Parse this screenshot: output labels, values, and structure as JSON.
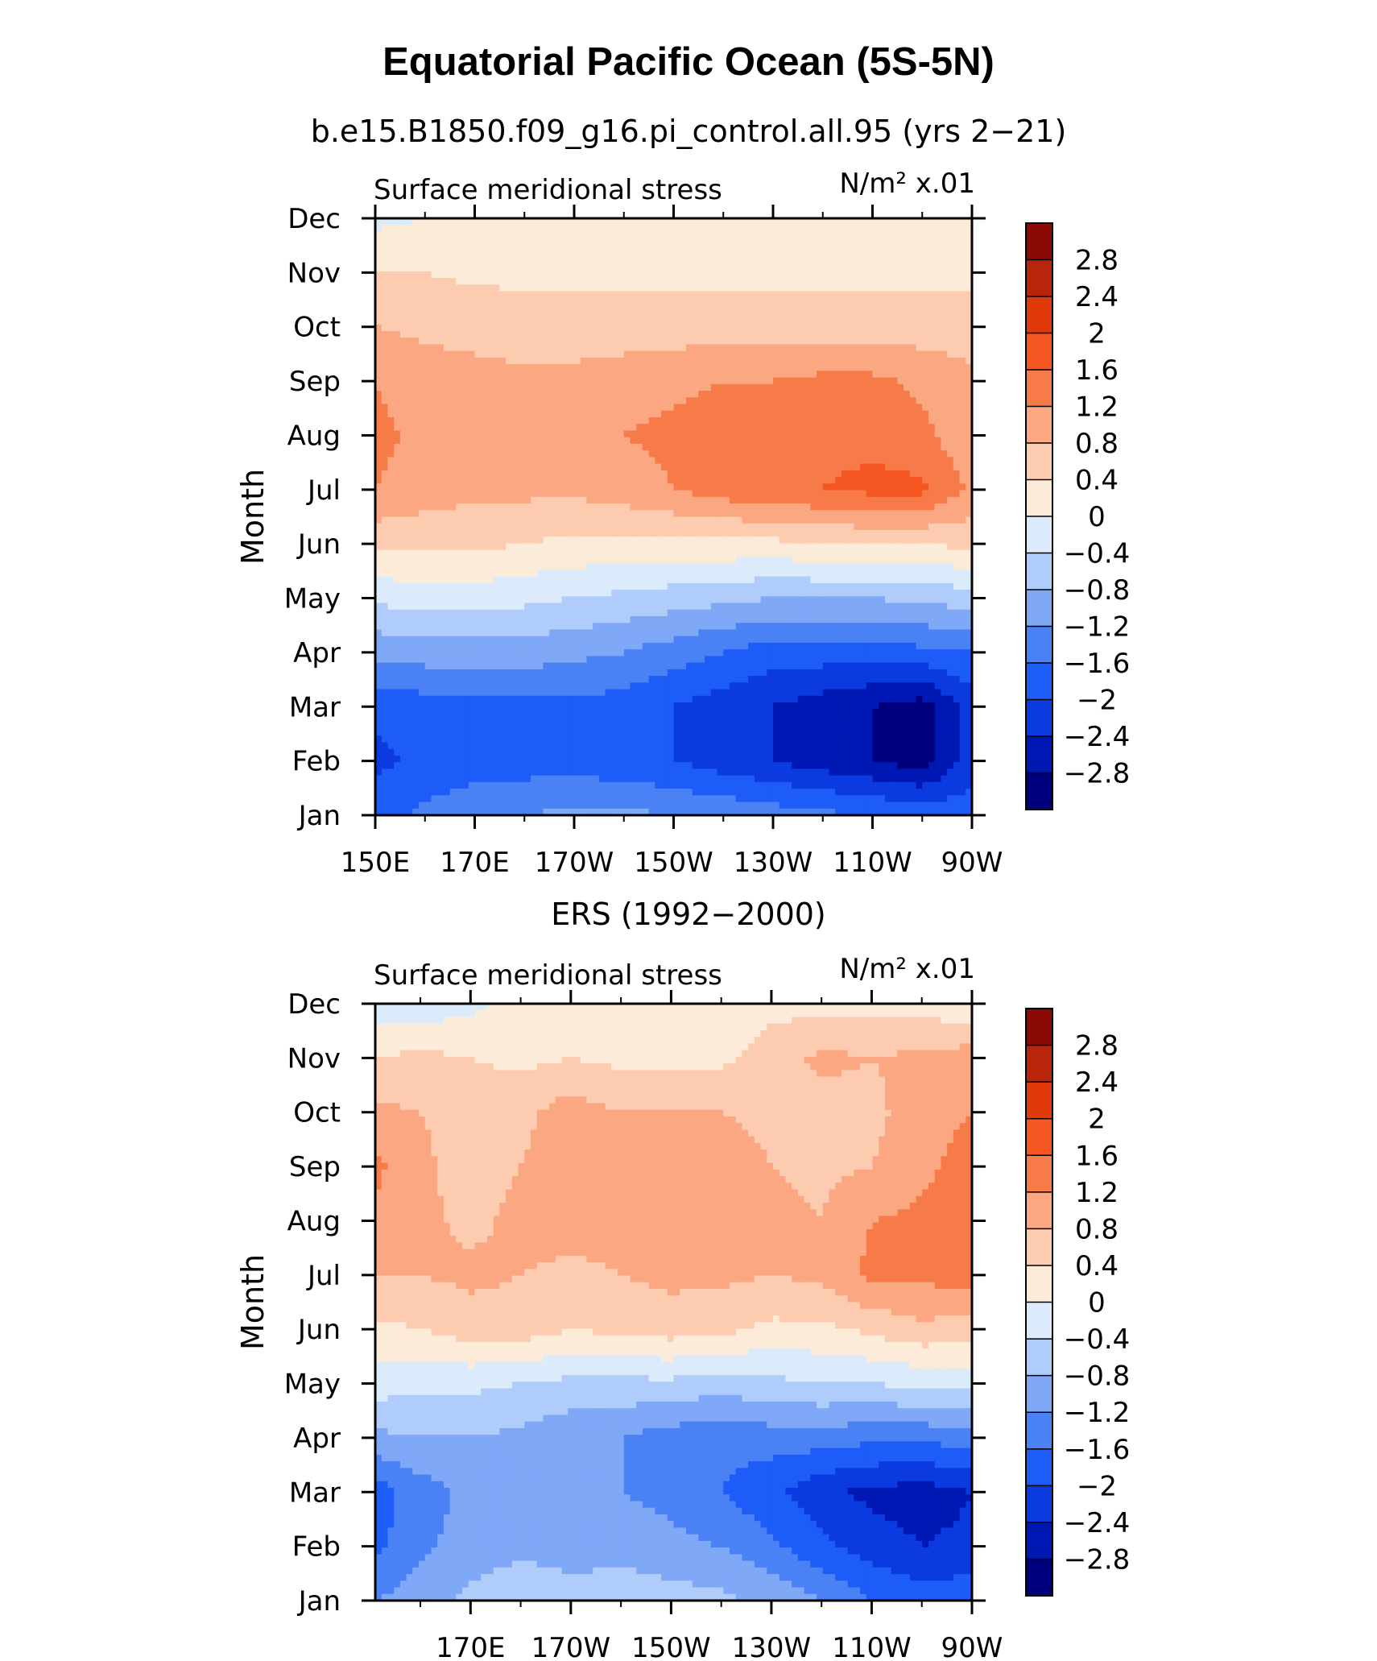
{
  "figure": {
    "title": "Equatorial Pacific Ocean (5S-5N)",
    "levels": [
      -2.8,
      -2.4,
      -2,
      -1.6,
      -1.2,
      -0.8,
      -0.4,
      0,
      0.4,
      0.8,
      1.2,
      1.6,
      2,
      2.4,
      2.8
    ],
    "colors": [
      "#00007f",
      "#0018b3",
      "#0a3ae0",
      "#1d5cf7",
      "#4a82f5",
      "#7fa8f7",
      "#b0ccfa",
      "#dcebfc",
      "#fdebd9",
      "#fccbb0",
      "#fba882",
      "#f77b48",
      "#f55622",
      "#e0390c",
      "#b8250a",
      "#8a0a05"
    ]
  },
  "chart_data": [
    {
      "type": "heatmap",
      "title": "b.e15.B1850.f09_g16.pi_control.all.95 (yrs 2−21)",
      "left_label": "Surface meridional stress",
      "right_label": "N/m² x.01",
      "ylabel": "Month",
      "xlabel": "",
      "x_ticks": [
        "150E",
        "170E",
        "170W",
        "150W",
        "130W",
        "110W",
        "90W"
      ],
      "y_ticks": [
        "Jan",
        "Feb",
        "Mar",
        "Apr",
        "May",
        "Jun",
        "Jul",
        "Aug",
        "Sep",
        "Oct",
        "Nov",
        "Dec"
      ],
      "xlim": [
        150,
        270
      ],
      "colorbar_labels": [
        "2.8",
        "2.4",
        "2",
        "1.6",
        "1.2",
        "0.8",
        "0.4",
        "0",
        "−0.4",
        "−0.8",
        "−1.2",
        "−1.6",
        "−2",
        "−2.4",
        "−2.8"
      ],
      "x": [
        150,
        160,
        170,
        180,
        190,
        200,
        210,
        220,
        230,
        240,
        250,
        260,
        270
      ],
      "values": [
        [
          -1.8,
          -1.5,
          -1.3,
          -1.2,
          -1.1,
          -1.1,
          -1.2,
          -1.3,
          -1.4,
          -1.5,
          -1.6,
          -1.7,
          -1.8
        ],
        [
          -2.1,
          -1.9,
          -1.8,
          -1.8,
          -1.8,
          -1.9,
          -2.0,
          -2.2,
          -2.4,
          -2.6,
          -2.8,
          -3.0,
          -2.2
        ],
        [
          -1.9,
          -1.8,
          -1.7,
          -1.7,
          -1.7,
          -1.8,
          -2.0,
          -2.2,
          -2.4,
          -2.6,
          -2.8,
          -3.0,
          -2.2
        ],
        [
          -1.1,
          -1.0,
          -1.0,
          -1.0,
          -1.1,
          -1.2,
          -1.4,
          -1.6,
          -1.8,
          -1.8,
          -1.8,
          -1.7,
          -1.6
        ],
        [
          -0.3,
          -0.2,
          -0.2,
          -0.3,
          -0.4,
          -0.5,
          -0.6,
          -0.7,
          -0.8,
          -0.8,
          -0.8,
          -0.7,
          -0.6
        ],
        [
          0.5,
          0.5,
          0.5,
          0.4,
          0.3,
          0.3,
          0.3,
          0.3,
          0.3,
          0.4,
          0.4,
          0.4,
          0.5
        ],
        [
          1.2,
          1.0,
          0.9,
          0.9,
          0.9,
          1.0,
          1.2,
          1.4,
          1.5,
          1.6,
          1.7,
          1.7,
          1.1
        ],
        [
          1.3,
          1.1,
          1.0,
          1.0,
          1.1,
          1.2,
          1.3,
          1.4,
          1.5,
          1.5,
          1.5,
          1.3,
          0.9
        ],
        [
          1.2,
          1.0,
          0.9,
          0.9,
          0.9,
          1.0,
          1.1,
          1.2,
          1.2,
          1.3,
          1.3,
          1.1,
          0.9
        ],
        [
          0.8,
          0.7,
          0.7,
          0.6,
          0.6,
          0.6,
          0.6,
          0.6,
          0.6,
          0.6,
          0.6,
          0.6,
          0.6
        ],
        [
          0.4,
          0.4,
          0.3,
          0.3,
          0.3,
          0.3,
          0.3,
          0.3,
          0.3,
          0.3,
          0.3,
          0.3,
          0.3
        ],
        [
          -0.1,
          0.0,
          0.1,
          0.1,
          0.1,
          0.1,
          0.1,
          0.1,
          0.1,
          0.1,
          0.1,
          0.1,
          0.0
        ]
      ]
    },
    {
      "type": "heatmap",
      "title": "ERS (1992−2000)",
      "left_label": "Surface meridional stress",
      "right_label": "N/m² x.01",
      "ylabel": "Month",
      "xlabel": "",
      "x_ticks": [
        "170E",
        "170W",
        "150W",
        "130W",
        "110W",
        "90W"
      ],
      "y_ticks": [
        "Jan",
        "Feb",
        "Mar",
        "Apr",
        "May",
        "Jun",
        "Jul",
        "Aug",
        "Sep",
        "Oct",
        "Nov",
        "Dec"
      ],
      "xlim": [
        151,
        270
      ],
      "colorbar_labels": [
        "2.8",
        "2.4",
        "2",
        "1.6",
        "1.2",
        "0.8",
        "0.4",
        "0",
        "−0.4",
        "−0.8",
        "−1.2",
        "−1.6",
        "−2",
        "−2.4",
        "−2.8"
      ],
      "x": [
        151,
        160,
        170,
        180,
        190,
        200,
        210,
        220,
        230,
        240,
        250,
        260,
        270
      ],
      "values": [
        [
          -1.2,
          -1.0,
          -0.7,
          -0.5,
          -0.6,
          -0.5,
          -0.6,
          -0.7,
          -0.9,
          -1.2,
          -1.6,
          -1.8,
          -1.7
        ],
        [
          -1.7,
          -1.3,
          -1.0,
          -0.9,
          -1.0,
          -1.0,
          -1.1,
          -1.2,
          -1.5,
          -1.9,
          -2.2,
          -2.4,
          -2.3
        ],
        [
          -1.8,
          -1.4,
          -1.1,
          -1.0,
          -1.1,
          -1.2,
          -1.3,
          -1.6,
          -1.9,
          -2.3,
          -2.5,
          -2.6,
          -2.4
        ],
        [
          -0.9,
          -0.8,
          -0.8,
          -0.9,
          -1.1,
          -1.2,
          -1.4,
          -1.5,
          -1.4,
          -1.4,
          -1.5,
          -1.5,
          -1.4
        ],
        [
          -0.2,
          -0.3,
          -0.3,
          -0.4,
          -0.5,
          -0.5,
          -0.5,
          -0.6,
          -0.5,
          -0.4,
          -0.4,
          -0.3,
          -0.3
        ],
        [
          0.3,
          0.4,
          0.6,
          0.6,
          0.4,
          0.5,
          0.6,
          0.5,
          0.3,
          0.3,
          0.5,
          0.7,
          0.6
        ],
        [
          0.8,
          0.8,
          0.9,
          0.8,
          0.7,
          0.8,
          0.9,
          0.9,
          0.8,
          0.9,
          1.3,
          1.3,
          1.4
        ],
        [
          1.1,
          0.9,
          0.7,
          0.9,
          1.0,
          0.9,
          1.0,
          1.0,
          0.9,
          0.8,
          1.2,
          1.3,
          1.4
        ],
        [
          1.3,
          0.9,
          0.6,
          0.8,
          1.0,
          0.8,
          1.0,
          1.0,
          0.8,
          0.7,
          0.8,
          1.1,
          1.4
        ],
        [
          0.9,
          0.8,
          0.6,
          0.7,
          1.0,
          0.8,
          0.8,
          0.8,
          0.7,
          0.6,
          0.7,
          1.0,
          1.2
        ],
        [
          0.4,
          0.5,
          0.4,
          0.3,
          0.4,
          0.3,
          0.3,
          0.3,
          0.6,
          0.9,
          0.8,
          0.9,
          1.0
        ],
        [
          -0.2,
          -0.3,
          -0.1,
          0.1,
          0.0,
          0.0,
          0.1,
          0.1,
          0.3,
          0.2,
          0.3,
          0.2,
          0.1
        ]
      ]
    }
  ]
}
